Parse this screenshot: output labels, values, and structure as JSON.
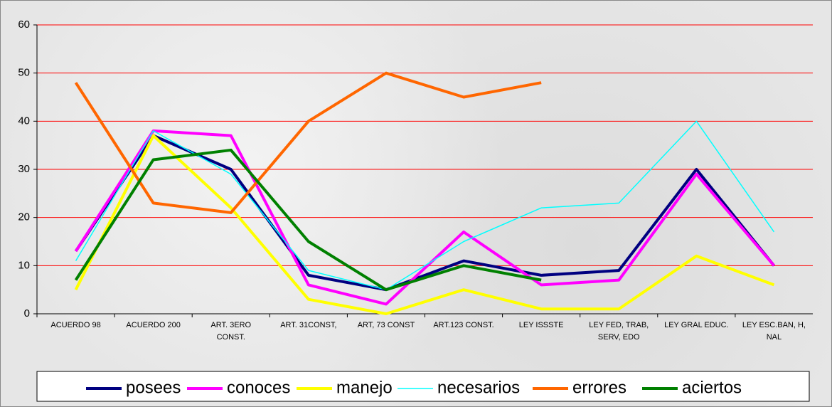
{
  "chart_data": {
    "type": "line",
    "categories": [
      "ACUERDO 98",
      "ACUERDO 200",
      "ART. 3ERO CONST.",
      "ART. 31CONST,",
      "ART, 73 CONST",
      "ART.123 CONST.",
      "LEY ISSSTE",
      "LEY FED, TRAB, SERV, EDO",
      "LEY GRAL EDUC.",
      "LEY ESC.BAN, H, NAL"
    ],
    "series": [
      {
        "name": "posees",
        "color": "#000080",
        "width": 4,
        "values": [
          13,
          37,
          30,
          8,
          5,
          11,
          8,
          9,
          30,
          10
        ]
      },
      {
        "name": "conoces",
        "color": "#ff00ff",
        "width": 4,
        "values": [
          13,
          38,
          37,
          6,
          2,
          17,
          6,
          7,
          29,
          10
        ]
      },
      {
        "name": "manejo",
        "color": "#ffff00",
        "width": 4,
        "values": [
          5,
          37,
          22,
          3,
          0,
          5,
          1,
          1,
          12,
          6
        ]
      },
      {
        "name": "necesarios",
        "color": "#00ffff",
        "width": 1.5,
        "values": [
          11,
          38,
          29,
          9,
          5,
          15,
          22,
          23,
          40,
          17
        ]
      },
      {
        "name": "errores",
        "color": "#ff6600",
        "width": 4,
        "values": [
          48,
          23,
          21,
          40,
          50,
          45,
          48,
          null,
          null,
          null
        ]
      },
      {
        "name": "aciertos",
        "color": "#008000",
        "width": 4,
        "values": [
          7,
          32,
          34,
          15,
          5,
          10,
          7,
          null,
          null,
          null
        ]
      }
    ],
    "ylim": [
      0,
      60
    ],
    "yticks": [
      0,
      10,
      20,
      30,
      40,
      50,
      60
    ],
    "grid": true,
    "grid_color": "#ff0000",
    "legend": "bottom"
  }
}
